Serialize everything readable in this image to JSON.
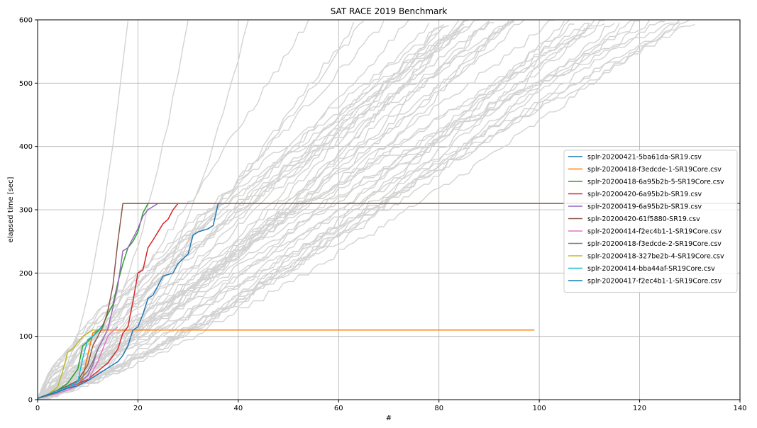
{
  "chart_data": {
    "type": "line",
    "title": "SAT RACE 2019 Benchmark",
    "xlabel": "#",
    "ylabel": "elapsed time [sec]",
    "xlim": [
      0,
      140
    ],
    "ylim": [
      0,
      600
    ],
    "xticks": [
      "0",
      "20",
      "40",
      "60",
      "80",
      "100",
      "120",
      "140"
    ],
    "yticks": [
      "0",
      "100",
      "200",
      "300",
      "400",
      "500",
      "600"
    ],
    "grid": true,
    "legend_position": "right",
    "background_series_color": "#d3d3d3",
    "background_series_count": 48,
    "series": [
      {
        "name": "splr-20200421-5ba61da-SR19.csv",
        "color": "#1f77b4",
        "points": [
          [
            0,
            2
          ],
          [
            2,
            8
          ],
          [
            4,
            14
          ],
          [
            6,
            18
          ],
          [
            8,
            22
          ],
          [
            9,
            35
          ],
          [
            10,
            70
          ],
          [
            11,
            105
          ],
          [
            12,
            110
          ],
          [
            20,
            110
          ],
          [
            40,
            110
          ],
          [
            60,
            110
          ],
          [
            80,
            110
          ],
          [
            99,
            110
          ]
        ]
      },
      {
        "name": "splr-20200418-f3edcde-1-SR19Core.csv",
        "color": "#ff7f0e",
        "points": [
          [
            0,
            2
          ],
          [
            2,
            8
          ],
          [
            4,
            14
          ],
          [
            6,
            18
          ],
          [
            8,
            22
          ],
          [
            9,
            35
          ],
          [
            10,
            70
          ],
          [
            11,
            105
          ],
          [
            12,
            110
          ],
          [
            20,
            110
          ],
          [
            40,
            110
          ],
          [
            60,
            110
          ],
          [
            80,
            110
          ],
          [
            99,
            110
          ]
        ]
      },
      {
        "name": "splr-20200418-6a95b2b-5-SR19Core.csv",
        "color": "#2ca02c",
        "points": [
          [
            0,
            2
          ],
          [
            2,
            8
          ],
          [
            4,
            15
          ],
          [
            6,
            26
          ],
          [
            8,
            48
          ],
          [
            9,
            85
          ],
          [
            10,
            92
          ],
          [
            11,
            100
          ],
          [
            12,
            108
          ],
          [
            13,
            118
          ],
          [
            14,
            135
          ],
          [
            15,
            150
          ],
          [
            16,
            185
          ],
          [
            17,
            215
          ],
          [
            18,
            240
          ],
          [
            19,
            250
          ],
          [
            20,
            265
          ],
          [
            21,
            295
          ],
          [
            22,
            310
          ]
        ]
      },
      {
        "name": "splr-20200420-6a95b2b-SR19.csv",
        "color": "#d62728",
        "points": [
          [
            0,
            2
          ],
          [
            2,
            8
          ],
          [
            4,
            15
          ],
          [
            6,
            20
          ],
          [
            8,
            25
          ],
          [
            10,
            32
          ],
          [
            12,
            45
          ],
          [
            14,
            58
          ],
          [
            16,
            80
          ],
          [
            17,
            105
          ],
          [
            18,
            115
          ],
          [
            19,
            155
          ],
          [
            20,
            200
          ],
          [
            21,
            205
          ],
          [
            22,
            240
          ],
          [
            23,
            252
          ],
          [
            24,
            265
          ],
          [
            25,
            278
          ],
          [
            26,
            285
          ],
          [
            27,
            300
          ],
          [
            28,
            310
          ]
        ]
      },
      {
        "name": "splr-20200419-6a95b2b-SR19.csv",
        "color": "#9467bd",
        "points": [
          [
            0,
            2
          ],
          [
            2,
            8
          ],
          [
            4,
            15
          ],
          [
            6,
            20
          ],
          [
            8,
            25
          ],
          [
            10,
            38
          ],
          [
            11,
            55
          ],
          [
            12,
            80
          ],
          [
            13,
            95
          ],
          [
            14,
            112
          ],
          [
            15,
            145
          ],
          [
            16,
            180
          ],
          [
            17,
            235
          ],
          [
            18,
            240
          ],
          [
            19,
            255
          ],
          [
            20,
            270
          ],
          [
            21,
            290
          ],
          [
            22,
            300
          ],
          [
            23,
            305
          ],
          [
            24,
            310
          ]
        ]
      },
      {
        "name": "splr-20200420-61f5880-SR19.csv",
        "color": "#8c564b",
        "points": [
          [
            0,
            2
          ],
          [
            2,
            8
          ],
          [
            4,
            15
          ],
          [
            6,
            22
          ],
          [
            8,
            30
          ],
          [
            10,
            55
          ],
          [
            11,
            85
          ],
          [
            12,
            100
          ],
          [
            13,
            115
          ],
          [
            14,
            140
          ],
          [
            15,
            180
          ],
          [
            16,
            250
          ],
          [
            17,
            310
          ],
          [
            40,
            310
          ],
          [
            60,
            310
          ],
          [
            80,
            310
          ],
          [
            100,
            310
          ],
          [
            120,
            310
          ],
          [
            140,
            310
          ]
        ]
      },
      {
        "name": "splr-20200414-f2ec4b1-1-SR19Core.csv",
        "color": "#e377c2",
        "points": [
          [
            0,
            2
          ],
          [
            2,
            6
          ],
          [
            4,
            10
          ],
          [
            6,
            15
          ],
          [
            8,
            22
          ],
          [
            10,
            30
          ],
          [
            11,
            45
          ],
          [
            12,
            60
          ],
          [
            13,
            80
          ],
          [
            14,
            100
          ],
          [
            15,
            108
          ],
          [
            16,
            115
          ]
        ]
      },
      {
        "name": "splr-20200418-f3edcde-2-SR19Core.csv",
        "color": "#7f7f7f",
        "points": [
          [
            0,
            2
          ],
          [
            2,
            6
          ],
          [
            4,
            12
          ],
          [
            6,
            20
          ],
          [
            8,
            28
          ],
          [
            10,
            45
          ],
          [
            11,
            60
          ],
          [
            12,
            80
          ]
        ]
      },
      {
        "name": "splr-20200418-327be2b-4-SR19Core.csv",
        "color": "#bcbd22",
        "points": [
          [
            0,
            2
          ],
          [
            2,
            8
          ],
          [
            4,
            20
          ],
          [
            5,
            45
          ],
          [
            6,
            75
          ],
          [
            7,
            80
          ],
          [
            8,
            90
          ],
          [
            9,
            100
          ],
          [
            10,
            105
          ],
          [
            11,
            110
          ],
          [
            12,
            110
          ]
        ]
      },
      {
        "name": "splr-20200414-bba44af-SR19Core.csv",
        "color": "#17becf",
        "points": [
          [
            0,
            2
          ],
          [
            2,
            8
          ],
          [
            4,
            14
          ],
          [
            6,
            20
          ],
          [
            8,
            28
          ],
          [
            9,
            65
          ],
          [
            10,
            95
          ],
          [
            11,
            100
          ],
          [
            12,
            110
          ],
          [
            13,
            115
          ]
        ]
      },
      {
        "name": "splr-20200417-f2ec4b1-1-SR19Core.csv",
        "color": "#1f77b4",
        "points": [
          [
            0,
            2
          ],
          [
            2,
            8
          ],
          [
            4,
            12
          ],
          [
            6,
            18
          ],
          [
            8,
            22
          ],
          [
            10,
            30
          ],
          [
            12,
            40
          ],
          [
            14,
            50
          ],
          [
            16,
            60
          ],
          [
            17,
            70
          ],
          [
            18,
            85
          ],
          [
            19,
            110
          ],
          [
            20,
            115
          ],
          [
            21,
            135
          ],
          [
            22,
            160
          ],
          [
            23,
            165
          ],
          [
            24,
            180
          ],
          [
            25,
            195
          ],
          [
            27,
            200
          ],
          [
            28,
            215
          ],
          [
            30,
            230
          ],
          [
            31,
            260
          ],
          [
            32,
            265
          ],
          [
            34,
            270
          ],
          [
            35,
            275
          ],
          [
            36,
            310
          ]
        ]
      }
    ]
  }
}
